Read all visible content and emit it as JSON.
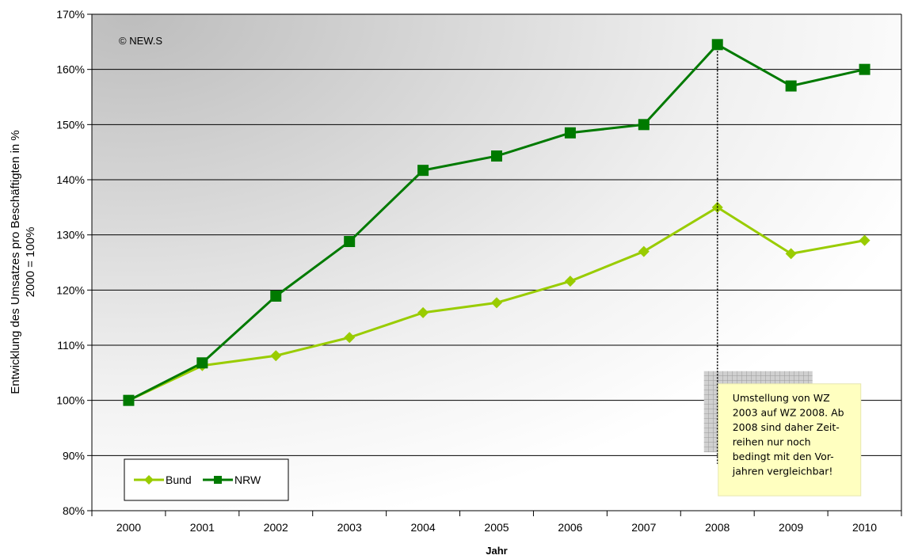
{
  "chart_data": {
    "type": "line",
    "title": "",
    "xlabel": "Jahr",
    "ylabel_line1": "Entwicklung des Umsatzes pro Beschäftigten in %",
    "ylabel_line2": "2000 = 100%",
    "copyright": "© NEW.S",
    "categories": [
      "2000",
      "2001",
      "2002",
      "2003",
      "2004",
      "2005",
      "2006",
      "2007",
      "2008",
      "2009",
      "2010"
    ],
    "ylim": [
      80,
      170
    ],
    "yticks": [
      80,
      90,
      100,
      110,
      120,
      130,
      140,
      150,
      160,
      170
    ],
    "ytick_labels": [
      "80%",
      "90%",
      "100%",
      "110%",
      "120%",
      "130%",
      "140%",
      "150%",
      "160%",
      "170%"
    ],
    "grid": true,
    "legend_position": "bottom-left",
    "series": [
      {
        "name": "Bund",
        "color": "#99CC00",
        "marker": "diamond",
        "values": [
          100,
          106.3,
          108.1,
          111.4,
          115.9,
          117.7,
          121.6,
          127.0,
          135.0,
          126.6,
          129.0
        ]
      },
      {
        "name": "NRW",
        "color": "#007A00",
        "marker": "square",
        "values": [
          100,
          106.8,
          118.9,
          128.8,
          141.7,
          144.3,
          148.5,
          150.0,
          164.5,
          157.0,
          160.0
        ]
      }
    ],
    "annotation": {
      "lines": [
        "Umstellung von WZ",
        "2003 auf WZ 2008. Ab",
        "2008 sind daher Zeit-",
        "reihen nur noch",
        "bedingt mit den Vor-",
        "jahren vergleichbar!"
      ],
      "category": "2008",
      "box_fill": "#FFFFC0"
    }
  }
}
